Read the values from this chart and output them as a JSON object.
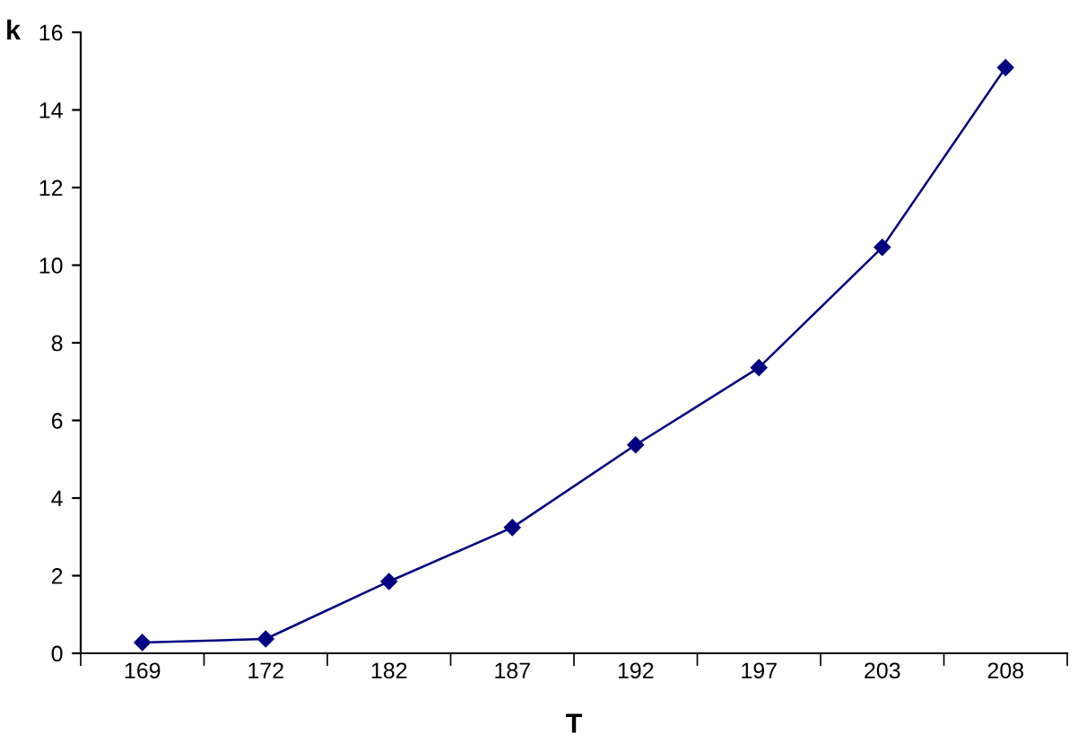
{
  "chart_data": {
    "type": "line",
    "xlabel": "T",
    "ylabel": "k",
    "categories": [
      "169",
      "172",
      "182",
      "187",
      "192",
      "197",
      "203",
      "208"
    ],
    "series": [
      {
        "color": "#000080",
        "values": [
          0.28,
          0.37,
          1.85,
          3.24,
          5.37,
          7.36,
          10.46,
          15.09
        ]
      }
    ],
    "ylim": [
      0,
      16
    ],
    "yticks": [
      0,
      2,
      4,
      6,
      8,
      10,
      12,
      14,
      16
    ],
    "grid": false,
    "legend": false,
    "marker": "diamond",
    "line_style": "solid"
  }
}
